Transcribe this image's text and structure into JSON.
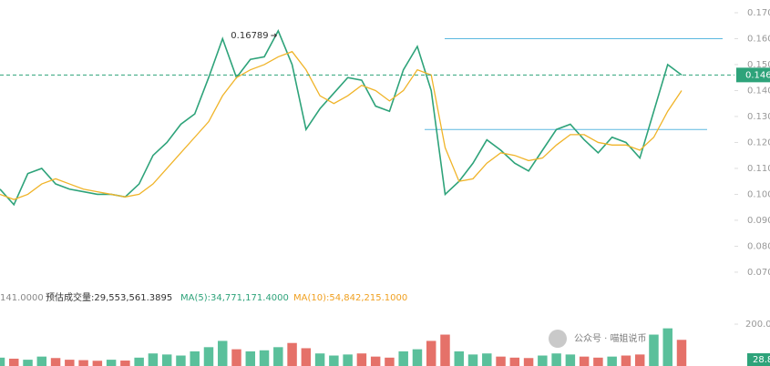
{
  "chart_data": [
    {
      "type": "line",
      "series": [
        {
          "name": "price",
          "color": "#2ea37a",
          "values": [
            0.102,
            0.096,
            0.108,
            0.11,
            0.104,
            0.102,
            0.101,
            0.1,
            0.1,
            0.099,
            0.104,
            0.115,
            0.12,
            0.127,
            0.131,
            0.145,
            0.16,
            0.145,
            0.152,
            0.153,
            0.163,
            0.15,
            0.125,
            0.133,
            0.139,
            0.145,
            0.144,
            0.134,
            0.132,
            0.148,
            0.157,
            0.14,
            0.1,
            0.105,
            0.112,
            0.121,
            0.117,
            0.112,
            0.109,
            0.117,
            0.125,
            0.127,
            0.121,
            0.116,
            0.122,
            0.12,
            0.114,
            0.132,
            0.15,
            0.146
          ]
        },
        {
          "name": "ma",
          "color": "#f0b429",
          "values": [
            0.1,
            0.098,
            0.1,
            0.104,
            0.106,
            0.104,
            0.102,
            0.101,
            0.1,
            0.099,
            0.1,
            0.104,
            0.11,
            0.116,
            0.122,
            0.128,
            0.138,
            0.145,
            0.148,
            0.15,
            0.153,
            0.155,
            0.148,
            0.138,
            0.135,
            0.138,
            0.142,
            0.14,
            0.136,
            0.14,
            0.148,
            0.146,
            0.118,
            0.105,
            0.106,
            0.112,
            0.116,
            0.115,
            0.113,
            0.114,
            0.119,
            0.123,
            0.123,
            0.12,
            0.119,
            0.119,
            0.117,
            0.122,
            0.132,
            0.14
          ]
        }
      ],
      "ylim": [
        0.0591,
        0.1749
      ],
      "yticks": [
        {
          "value": 0.17,
          "label": "0.170"
        },
        {
          "value": 0.16,
          "label": "0.160"
        },
        {
          "value": 0.15,
          "label": "0.150"
        },
        {
          "value": 0.14,
          "label": "0.140"
        },
        {
          "value": 0.13,
          "label": "0.130"
        },
        {
          "value": 0.12,
          "label": "0.120"
        },
        {
          "value": 0.11,
          "label": "0.110"
        },
        {
          "value": 0.1,
          "label": "0.100"
        },
        {
          "value": 0.09,
          "label": "0.090"
        },
        {
          "value": 0.08,
          "label": "0.080"
        },
        {
          "value": 0.07,
          "label": "0.070"
        }
      ],
      "levels": [
        0.16,
        0.125
      ],
      "last_price": 0.146,
      "max_price": 0.16789
    },
    {
      "type": "bar",
      "status": [
        "141.0000",
        "预估成交量:29,553,561.3895",
        "MA(5):34,771,171.4000",
        "MA(10):54,842,215.1000"
      ],
      "values": [
        40,
        35,
        30,
        45,
        38,
        30,
        28,
        25,
        30,
        26,
        40,
        60,
        55,
        50,
        70,
        90,
        120,
        80,
        70,
        75,
        90,
        110,
        85,
        60,
        50,
        55,
        60,
        45,
        40,
        70,
        80,
        120,
        150,
        70,
        55,
        60,
        45,
        40,
        38,
        50,
        60,
        55,
        45,
        40,
        45,
        50,
        55,
        150,
        180,
        125
      ],
      "ylim": [
        0,
        248
      ],
      "yticks": [
        {
          "value": 200,
          "label": "200.0"
        }
      ],
      "current_label": "28.8",
      "watermark": "公众号 · 喵姐说币"
    }
  ]
}
